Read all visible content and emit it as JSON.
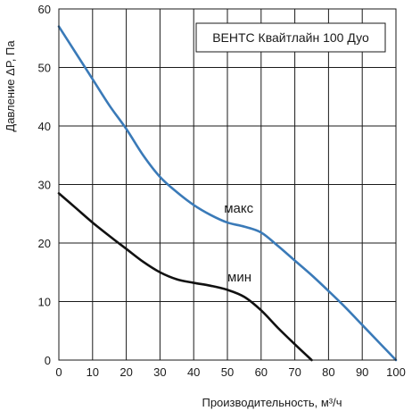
{
  "chart_data": {
    "type": "line",
    "title": "ВЕНТС Квайтлайн 100 Дуо",
    "xlabel": "Производительность, м³/ч",
    "ylabel": "Давление  ΔP, Па",
    "xlim": [
      0,
      100
    ],
    "ylim": [
      0,
      60
    ],
    "x_ticks": [
      0,
      10,
      20,
      30,
      40,
      50,
      60,
      70,
      80,
      90,
      100
    ],
    "y_ticks": [
      0,
      10,
      20,
      30,
      40,
      50,
      60
    ],
    "grid": true,
    "series": [
      {
        "name": "макс",
        "color": "#3a7ab8",
        "x": [
          0,
          5,
          10,
          15,
          20,
          25,
          30,
          35,
          40,
          45,
          50,
          55,
          60,
          65,
          70,
          75,
          80,
          85,
          90,
          95,
          100
        ],
        "y": [
          57,
          52.5,
          48,
          43.5,
          39.5,
          35,
          31.3,
          28.7,
          26.5,
          24.8,
          23.5,
          22.8,
          21.8,
          19.5,
          17,
          14.5,
          11.8,
          9,
          6,
          3,
          0
        ]
      },
      {
        "name": "мин",
        "color": "#111111",
        "x": [
          0,
          5,
          10,
          15,
          20,
          25,
          30,
          35,
          40,
          45,
          50,
          55,
          60,
          65,
          70,
          75
        ],
        "y": [
          28.5,
          26,
          23.5,
          21.2,
          19,
          16.8,
          15,
          13.8,
          13.2,
          12.7,
          12,
          10.8,
          8.5,
          5.5,
          2.7,
          0
        ]
      }
    ]
  }
}
